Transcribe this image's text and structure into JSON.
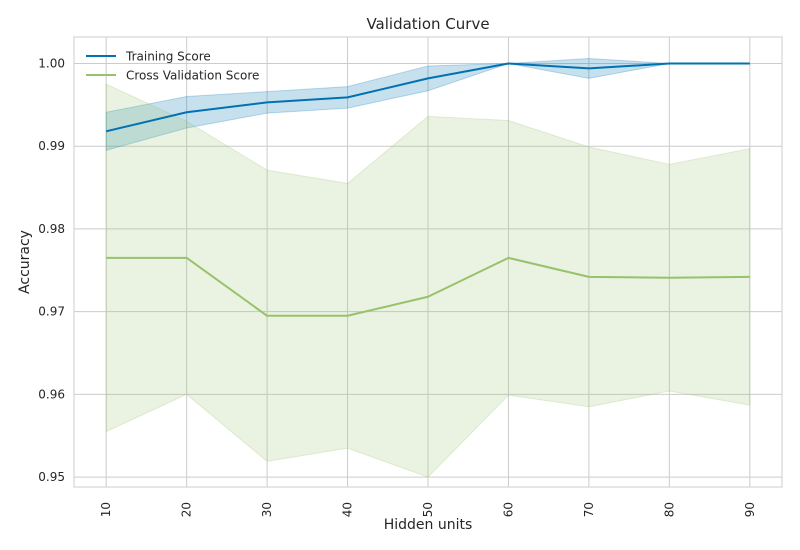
{
  "chart_data": {
    "type": "line",
    "title": "Validation Curve",
    "xlabel": "Hidden units",
    "ylabel": "Accuracy",
    "x": [
      10,
      20,
      30,
      40,
      50,
      60,
      70,
      80,
      90
    ],
    "x_tick_labels": [
      "10",
      "20",
      "30",
      "40",
      "50",
      "60",
      "70",
      "80",
      "90"
    ],
    "xlim": [
      6,
      94
    ],
    "ylim": [
      0.9488,
      1.0032
    ],
    "y_ticks": [
      0.95,
      0.96,
      0.97,
      0.98,
      0.99,
      1.0
    ],
    "y_tick_labels": [
      "0.95",
      "0.96",
      "0.97",
      "0.98",
      "0.99",
      "1.00"
    ],
    "grid": true,
    "legend_position": "top-left",
    "series": [
      {
        "name": "Training Score",
        "color": "#0072b2",
        "values": [
          0.9918,
          0.9941,
          0.9953,
          0.9959,
          0.9982,
          1.0,
          0.9994,
          1.0,
          1.0
        ],
        "upper": [
          0.9941,
          0.996,
          0.9966,
          0.9972,
          0.9997,
          1.0,
          1.0006,
          1.0,
          1.0
        ],
        "lower": [
          0.9895,
          0.9922,
          0.994,
          0.9946,
          0.9967,
          1.0,
          0.9982,
          1.0,
          1.0
        ]
      },
      {
        "name": "Cross Validation Score",
        "color": "#97c16b",
        "values": [
          0.9765,
          0.9765,
          0.9695,
          0.9695,
          0.9718,
          0.9765,
          0.9742,
          0.9741,
          0.9742
        ],
        "upper": [
          0.9975,
          0.993,
          0.9871,
          0.9855,
          0.9936,
          0.9931,
          0.9899,
          0.9878,
          0.9897
        ],
        "lower": [
          0.9555,
          0.96,
          0.9519,
          0.9535,
          0.95,
          0.9599,
          0.9585,
          0.9604,
          0.9587
        ]
      }
    ]
  }
}
